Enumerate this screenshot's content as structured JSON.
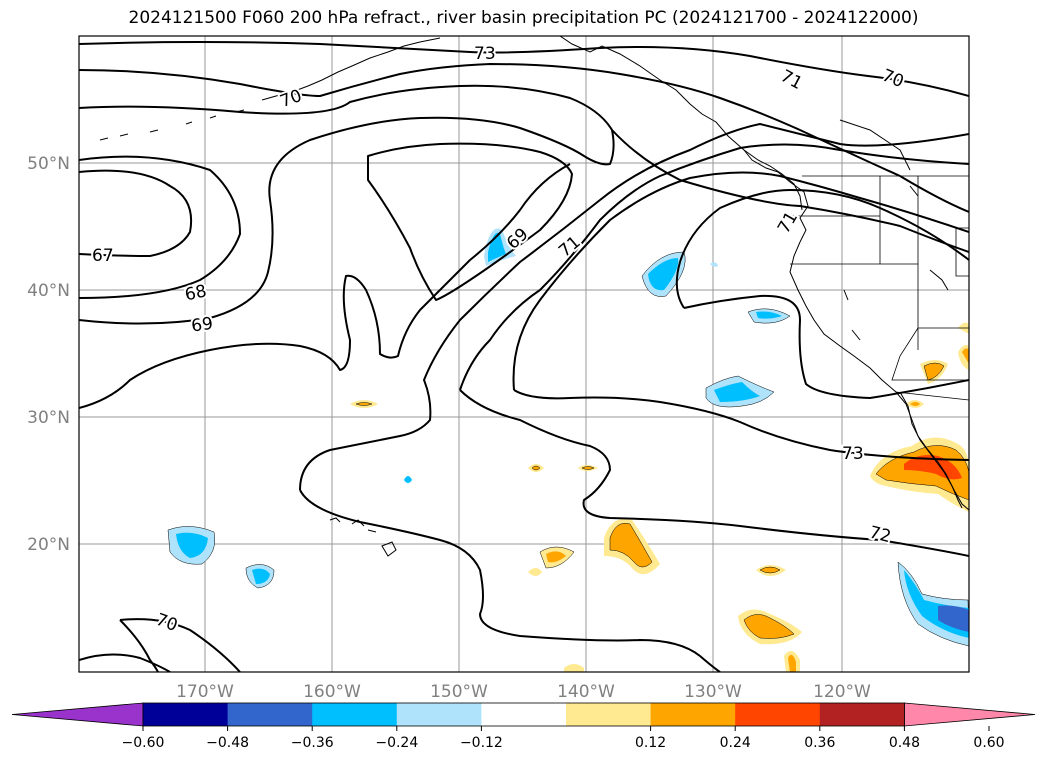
{
  "title": "2024121500 F060 200 hPa refract., river basin precipitation PC (2024121700 - 2024122000)",
  "axes": {
    "lat_labels": [
      "50°N",
      "40°N",
      "30°N",
      "20°N"
    ],
    "lon_labels": [
      "170°W",
      "160°W",
      "150°W",
      "140°W",
      "130°W",
      "120°W"
    ]
  },
  "contour_labels": [
    "73",
    "71",
    "70",
    "70",
    "71",
    "67",
    "68",
    "69",
    "69",
    "71",
    "73",
    "72",
    "70"
  ],
  "colorbar": {
    "colors": [
      "#9933cc",
      "#000099",
      "#3366cc",
      "#00bfff",
      "#aee3fb",
      "#ffffff",
      "#ffe991",
      "#ffa500",
      "#ff4500",
      "#b22222",
      "#ff88aa"
    ],
    "tick_labels": [
      "−0.60",
      "−0.48",
      "−0.36",
      "−0.24",
      "−0.12",
      "0.12",
      "0.24",
      "0.36",
      "0.48",
      "0.60"
    ]
  },
  "colors": {
    "grid": "#999999",
    "axis_label": "#808080",
    "contour": "#000000"
  }
}
